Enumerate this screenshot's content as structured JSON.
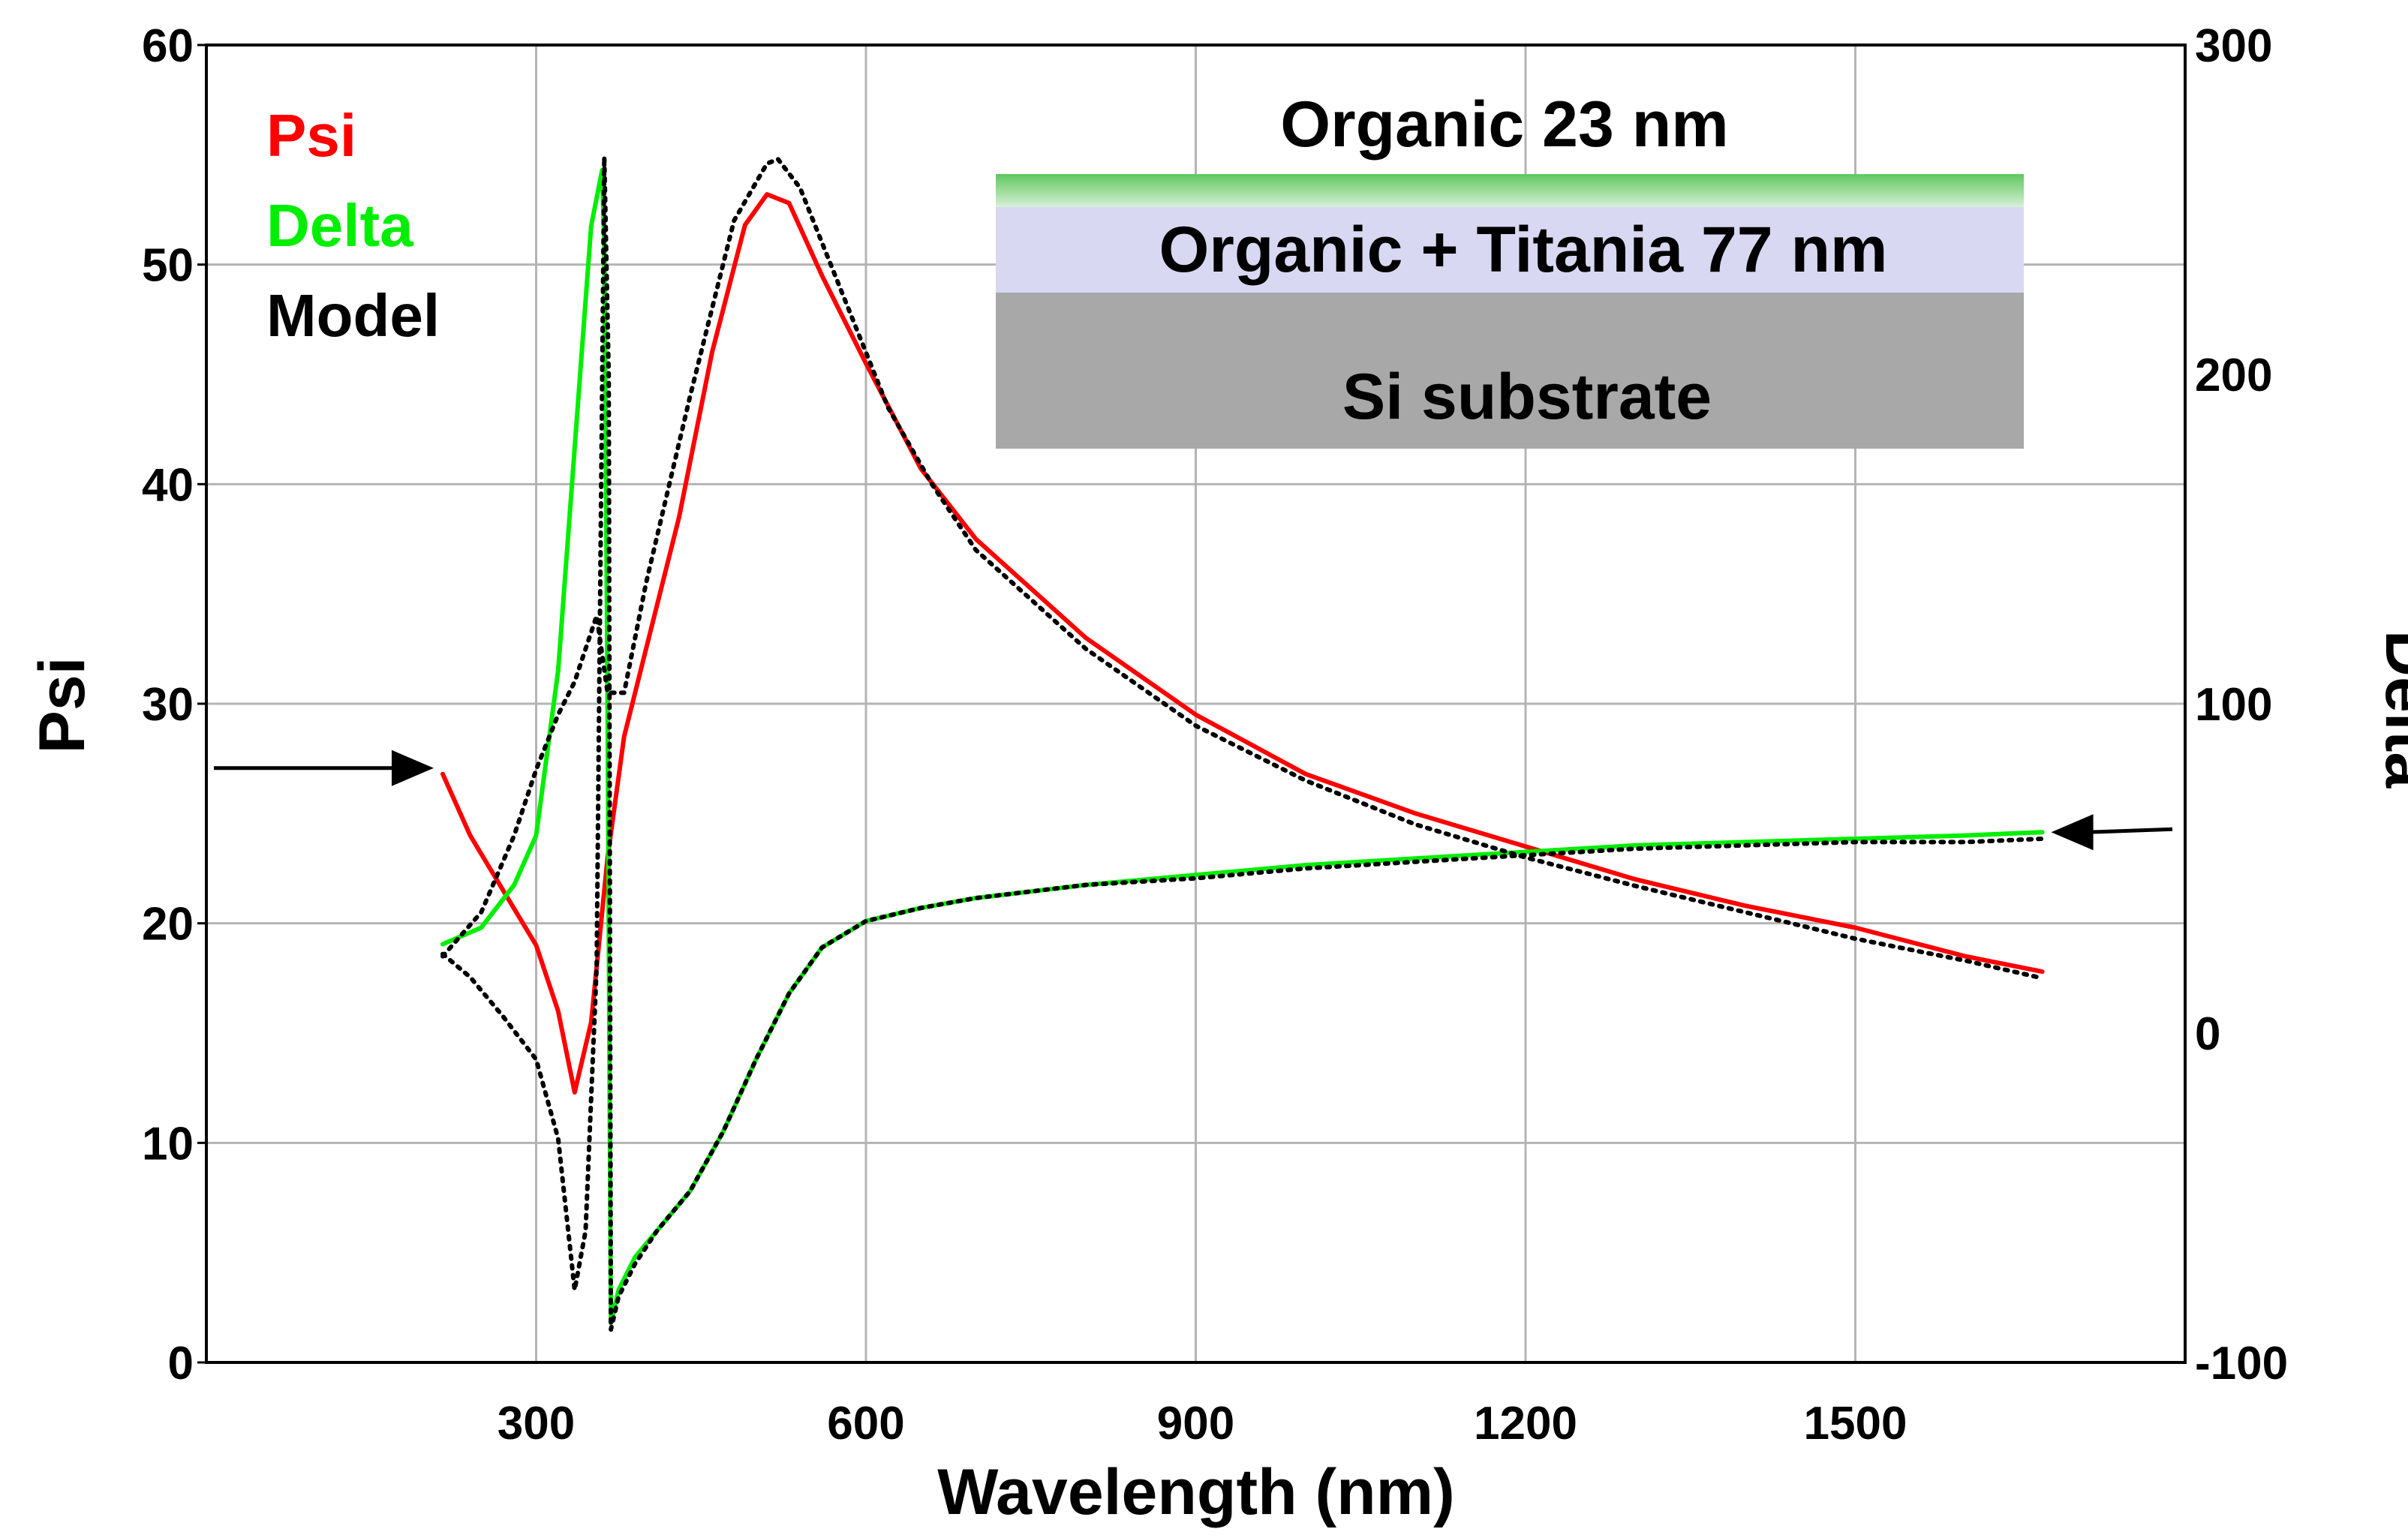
{
  "chart_data": {
    "type": "line",
    "title": "",
    "xlabel": "Wavelength (nm)",
    "ylabel": "Psi",
    "y2label": "Delta",
    "xlim": [
      0,
      1800
    ],
    "ylim": [
      0,
      60
    ],
    "y2lim": [
      -100,
      300
    ],
    "xticks": [
      "300",
      "600",
      "900",
      "1200",
      "1500"
    ],
    "yticks": [
      "0",
      "10",
      "20",
      "30",
      "40",
      "50",
      "60"
    ],
    "y2ticks": [
      "-100",
      "0",
      "100",
      "200",
      "300"
    ],
    "grid": true,
    "legend": {
      "position": "top-left",
      "entries": [
        {
          "label": "Psi",
          "color": "#ff0000"
        },
        {
          "label": "Delta",
          "color": "#00ee00"
        },
        {
          "label": "Model",
          "color": "#000000"
        }
      ]
    },
    "series": [
      {
        "name": "Psi",
        "axis": "left",
        "color": "#ff0000",
        "style": "solid",
        "x": [
          215,
          240,
          270,
          300,
          320,
          335,
          350,
          365,
          380,
          400,
          430,
          460,
          490,
          510,
          530,
          560,
          600,
          650,
          700,
          800,
          900,
          1000,
          1100,
          1200,
          1300,
          1400,
          1500,
          1600,
          1670
        ],
        "y": [
          26.8,
          24.0,
          21.5,
          19.0,
          16.0,
          12.3,
          15.5,
          23.0,
          28.5,
          32.5,
          38.5,
          46.0,
          51.8,
          53.2,
          52.8,
          49.5,
          45.5,
          40.7,
          37.5,
          33.0,
          29.5,
          26.8,
          25.0,
          23.5,
          22.0,
          20.8,
          19.8,
          18.5,
          17.8
        ]
      },
      {
        "name": "Delta",
        "axis": "right",
        "color": "#00ee00",
        "style": "solid",
        "x": [
          215,
          250,
          280,
          300,
          320,
          340,
          350,
          360,
          362,
          365,
          368,
          375,
          390,
          410,
          440,
          470,
          500,
          530,
          560,
          600,
          650,
          700,
          800,
          900,
          1000,
          1100,
          1200,
          1300,
          1400,
          1500,
          1600,
          1670
        ],
        "y": [
          27,
          32,
          45,
          60,
          110,
          200,
          245,
          262,
          240,
          100,
          -88,
          -78,
          -68,
          -60,
          -48,
          -30,
          -8,
          12,
          26,
          34,
          38,
          41,
          45,
          48,
          51,
          53,
          55,
          57,
          58,
          59,
          60,
          61
        ]
      },
      {
        "name": "Model",
        "axis": "left",
        "color": "#000000",
        "style": "dotted",
        "x": [
          215,
          250,
          280,
          300,
          320,
          335,
          345,
          355,
          365,
          380,
          400,
          440,
          480,
          510,
          520,
          540,
          580,
          620,
          660,
          700,
          800,
          900,
          1000,
          1100,
          1200,
          1300,
          1400,
          1500,
          1600,
          1670
        ],
        "y": [
          18.5,
          20.5,
          24.0,
          27.0,
          29.5,
          31.0,
          32.5,
          34.0,
          30.5,
          30.5,
          35.5,
          44.0,
          52.0,
          54.6,
          54.8,
          53.5,
          48.5,
          43.5,
          40.0,
          37.0,
          32.5,
          29.0,
          26.5,
          24.5,
          23.0,
          21.7,
          20.5,
          19.3,
          18.3,
          17.5
        ]
      },
      {
        "name": "Model (Delta)",
        "axis": "right",
        "color": "#000000",
        "style": "dotted",
        "x": [
          215,
          240,
          270,
          300,
          320,
          335,
          345,
          355,
          362,
          366,
          368,
          375,
          390,
          410,
          440,
          470,
          500,
          530,
          560,
          600,
          650,
          700,
          800,
          900,
          1000,
          1100,
          1200,
          1300,
          1400,
          1500,
          1600,
          1670
        ],
        "y": [
          24,
          17,
          5,
          -8,
          -32,
          -78,
          -60,
          20,
          266,
          200,
          -90,
          -80,
          -70,
          -60,
          -48,
          -30,
          -8,
          12,
          26,
          34,
          38,
          41,
          45,
          47,
          50,
          52,
          54,
          56,
          57,
          58,
          58,
          59
        ]
      }
    ],
    "annotations": [
      {
        "type": "arrow",
        "direction": "right",
        "x": 215,
        "y": 27,
        "axis": "left",
        "text": ""
      },
      {
        "type": "arrow",
        "direction": "left",
        "x": 1670,
        "y": 61,
        "axis": "right",
        "text": ""
      }
    ]
  },
  "inset": {
    "top_label": "Organic 23 nm",
    "layers": [
      {
        "label": "",
        "color": "#66cc66"
      },
      {
        "label": "Organic + Titania 77 nm",
        "color": "#d8d8f2"
      },
      {
        "label": "Si substrate",
        "color": "#a8a8a8"
      }
    ]
  }
}
